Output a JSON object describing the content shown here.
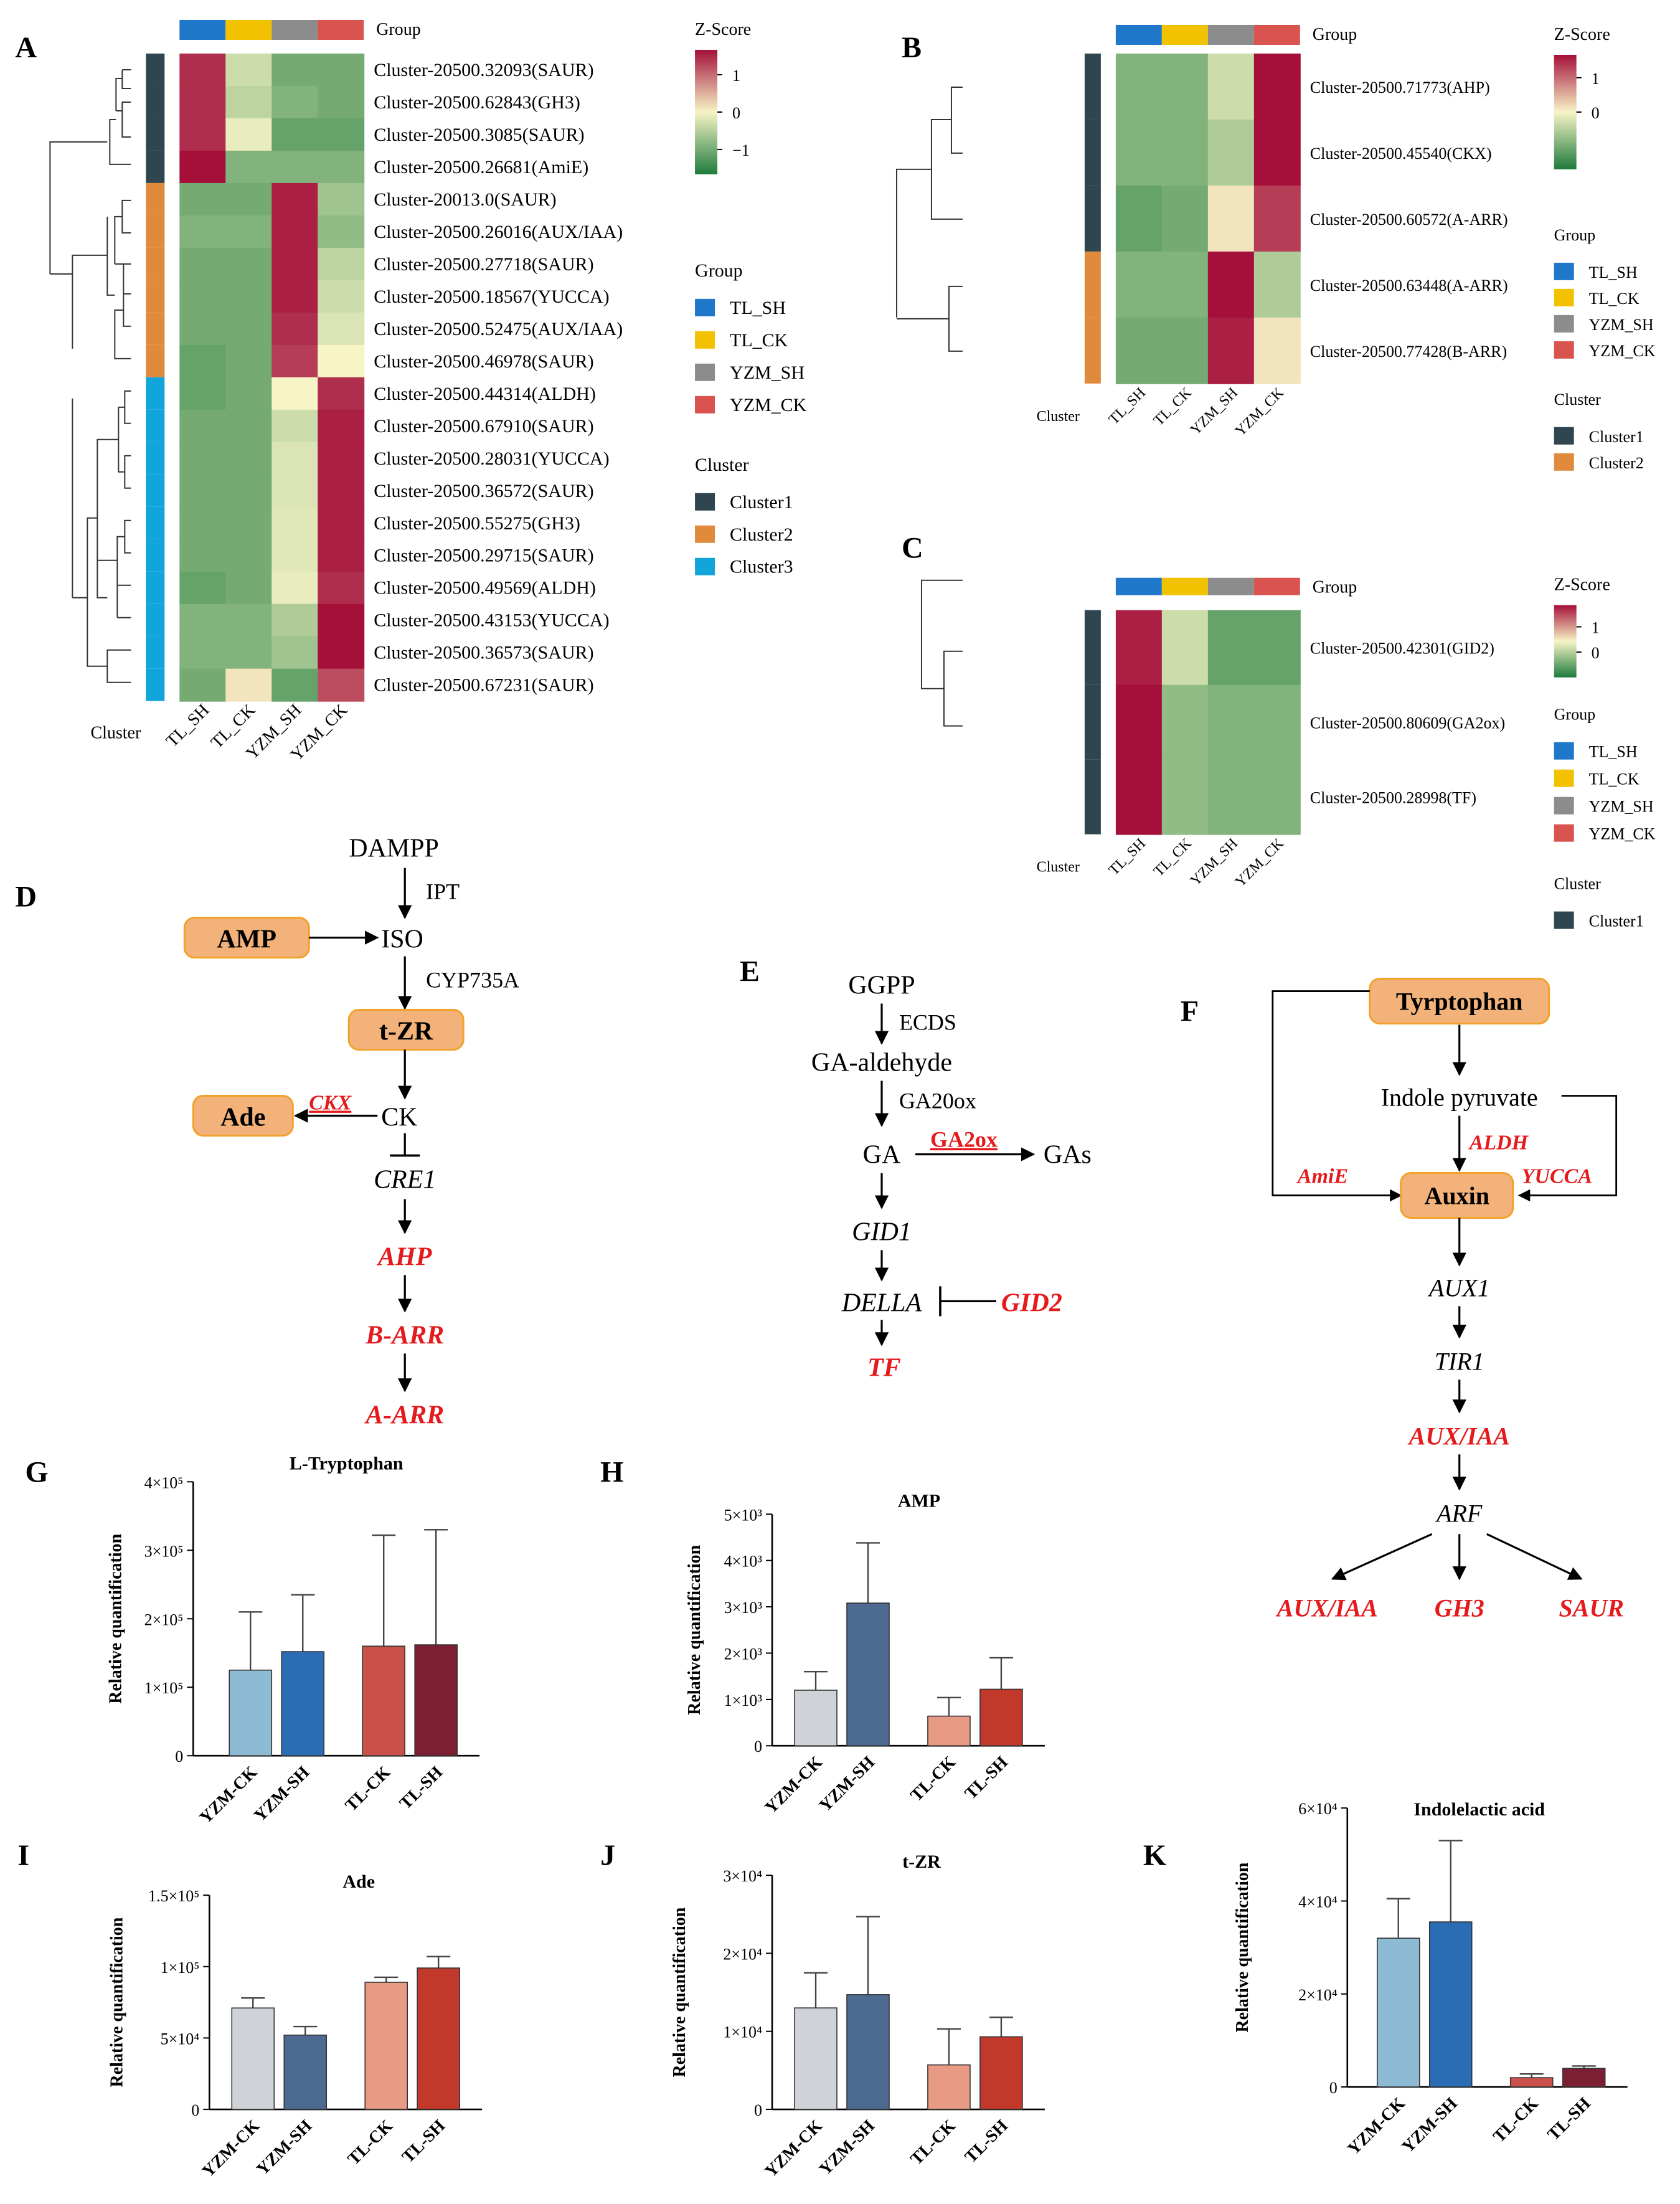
{
  "colors": {
    "TL_SH": "#1f77c9",
    "TL_CK": "#f2c200",
    "YZM_SH": "#8c8c8c",
    "YZM_CK": "#d9534f",
    "Cluster1": "#2f4550",
    "Cluster2": "#e08a3c",
    "Cluster3": "#12a5dc",
    "zhigh": "#a5103a",
    "zmid": "#f7f4c6",
    "zlow": "#1e7b3c",
    "box": "#f2b27a",
    "boxBorder": "#f2a22a",
    "highlight": "#e41a1c"
  },
  "chart_data": [
    {
      "panel": "A",
      "type": "heatmap",
      "columns": [
        "TL_SH",
        "TL_CK",
        "YZM_SH",
        "YZM_CK"
      ],
      "group_title": "Group",
      "cluster_title": "Cluster",
      "zscore_title": "Z-Score",
      "zscore_ticks": [
        "1",
        "0",
        "−1"
      ],
      "groups_legend": [
        "TL_SH",
        "TL_CK",
        "YZM_SH",
        "YZM_CK"
      ],
      "clusters_legend": [
        "Cluster1",
        "Cluster2",
        "Cluster3"
      ],
      "rows": [
        {
          "label": "Cluster-20500.32093(SAUR)",
          "cluster": 1,
          "z": [
            1.3,
            -0.3,
            -0.9,
            -0.9
          ]
        },
        {
          "label": "Cluster-20500.62843(GH3)",
          "cluster": 1,
          "z": [
            1.3,
            -0.4,
            -0.8,
            -0.9
          ]
        },
        {
          "label": "Cluster-20500.3085(SAUR)",
          "cluster": 1,
          "z": [
            1.3,
            -0.1,
            -1.0,
            -1.0
          ]
        },
        {
          "label": "Cluster-20500.26681(AmiE)",
          "cluster": 1,
          "z": [
            1.5,
            -0.8,
            -0.8,
            -0.8
          ]
        },
        {
          "label": "Cluster-20013.0(SAUR)",
          "cluster": 2,
          "z": [
            -0.9,
            -0.9,
            1.4,
            -0.6
          ]
        },
        {
          "label": "Cluster-20500.26016(AUX/IAA)",
          "cluster": 2,
          "z": [
            -0.8,
            -0.8,
            1.4,
            -0.7
          ]
        },
        {
          "label": "Cluster-20500.27718(SAUR)",
          "cluster": 2,
          "z": [
            -0.9,
            -0.9,
            1.4,
            -0.4
          ]
        },
        {
          "label": "Cluster-20500.18567(YUCCA)",
          "cluster": 2,
          "z": [
            -0.9,
            -0.9,
            1.4,
            -0.3
          ]
        },
        {
          "label": "Cluster-20500.52475(AUX/IAA)",
          "cluster": 2,
          "z": [
            -0.9,
            -0.9,
            1.3,
            -0.2
          ]
        },
        {
          "label": "Cluster-20500.46978(SAUR)",
          "cluster": 2,
          "z": [
            -1.0,
            -0.9,
            1.2,
            0.0
          ]
        },
        {
          "label": "Cluster-20500.44314(ALDH)",
          "cluster": 3,
          "z": [
            -1.0,
            -0.9,
            0.0,
            1.3
          ]
        },
        {
          "label": "Cluster-20500.67910(SAUR)",
          "cluster": 3,
          "z": [
            -0.9,
            -0.9,
            -0.3,
            1.4
          ]
        },
        {
          "label": "Cluster-20500.28031(YUCCA)",
          "cluster": 3,
          "z": [
            -0.9,
            -0.9,
            -0.2,
            1.4
          ]
        },
        {
          "label": "Cluster-20500.36572(SAUR)",
          "cluster": 3,
          "z": [
            -0.9,
            -0.9,
            -0.2,
            1.4
          ]
        },
        {
          "label": "Cluster-20500.55275(GH3)",
          "cluster": 3,
          "z": [
            -0.9,
            -0.9,
            -0.15,
            1.4
          ]
        },
        {
          "label": "Cluster-20500.29715(SAUR)",
          "cluster": 3,
          "z": [
            -0.9,
            -0.9,
            -0.15,
            1.4
          ]
        },
        {
          "label": "Cluster-20500.49569(ALDH)",
          "cluster": 3,
          "z": [
            -1.0,
            -0.9,
            -0.1,
            1.3
          ]
        },
        {
          "label": "Cluster-20500.43153(YUCCA)",
          "cluster": 3,
          "z": [
            -0.8,
            -0.8,
            -0.5,
            1.5
          ]
        },
        {
          "label": "Cluster-20500.36573(SAUR)",
          "cluster": 3,
          "z": [
            -0.8,
            -0.8,
            -0.6,
            1.5
          ]
        },
        {
          "label": "Cluster-20500.67231(SAUR)",
          "cluster": 3,
          "z": [
            -0.9,
            0.1,
            -1.0,
            1.1
          ]
        }
      ]
    },
    {
      "panel": "B",
      "type": "heatmap",
      "columns": [
        "TL_SH",
        "TL_CK",
        "YZM_SH",
        "YZM_CK"
      ],
      "group_title": "Group",
      "cluster_title": "Cluster",
      "zscore_title": "Z-Score",
      "zscore_ticks": [
        "1",
        "0"
      ],
      "groups_legend": [
        "TL_SH",
        "TL_CK",
        "YZM_SH",
        "YZM_CK"
      ],
      "clusters_legend": [
        "Cluster1",
        "Cluster2"
      ],
      "rows": [
        {
          "label": "Cluster-20500.71773(AHP)",
          "cluster": 1,
          "z": [
            -0.8,
            -0.8,
            -0.3,
            1.5
          ]
        },
        {
          "label": "Cluster-20500.45540(CKX)",
          "cluster": 1,
          "z": [
            -0.8,
            -0.8,
            -0.5,
            1.5
          ]
        },
        {
          "label": "Cluster-20500.60572(A-ARR)",
          "cluster": 1,
          "z": [
            -1.0,
            -0.9,
            0.1,
            1.2
          ]
        },
        {
          "label": "Cluster-20500.63448(A-ARR)",
          "cluster": 2,
          "z": [
            -0.8,
            -0.8,
            1.5,
            -0.5
          ]
        },
        {
          "label": "Cluster-20500.77428(B-ARR)",
          "cluster": 2,
          "z": [
            -0.9,
            -0.9,
            1.4,
            0.1
          ]
        }
      ]
    },
    {
      "panel": "C",
      "type": "heatmap",
      "columns": [
        "TL_SH",
        "TL_CK",
        "YZM_SH",
        "YZM_CK"
      ],
      "group_title": "Group",
      "cluster_title": "Cluster",
      "zscore_title": "Z-Score",
      "zscore_ticks": [
        "1",
        "0"
      ],
      "groups_legend": [
        "TL_SH",
        "TL_CK",
        "YZM_SH",
        "YZM_CK"
      ],
      "clusters_legend": [
        "Cluster1"
      ],
      "rows": [
        {
          "label": "Cluster-20500.42301(GID2)",
          "cluster": 1,
          "z": [
            1.4,
            -0.3,
            -1.0,
            -1.0
          ]
        },
        {
          "label": "Cluster-20500.80609(GA2ox)",
          "cluster": 1,
          "z": [
            1.5,
            -0.7,
            -0.8,
            -0.8
          ]
        },
        {
          "label": "Cluster-20500.28998(TF)",
          "cluster": 1,
          "z": [
            1.5,
            -0.7,
            -0.8,
            -0.8
          ]
        }
      ]
    },
    {
      "panel": "G",
      "type": "bar",
      "title": "L-Tryptophan",
      "ylabel": "Relative quantification",
      "categories": [
        "YZM-CK",
        "YZM-SH",
        "TL-CK",
        "TL-SH"
      ],
      "values": [
        125000,
        152000,
        160000,
        162000
      ],
      "errors": [
        85000,
        83000,
        162000,
        168000
      ],
      "ylim": [
        0,
        400000
      ],
      "yticks": [
        "0",
        "1×10⁵",
        "2×10⁵",
        "3×10⁵",
        "4×10⁵"
      ],
      "bar_colors": [
        "#8dbbd4",
        "#2a6db5",
        "#c9514a",
        "#7d1f33"
      ]
    },
    {
      "panel": "H",
      "type": "bar",
      "title": "AMP",
      "ylabel": "Relative quantification",
      "categories": [
        "YZM-CK",
        "YZM-SH",
        "TL-CK",
        "TL-SH"
      ],
      "values": [
        1200,
        3080,
        640,
        1220
      ],
      "errors": [
        400,
        1300,
        400,
        680
      ],
      "ylim": [
        0,
        5000
      ],
      "yticks": [
        "0",
        "1×10³",
        "2×10³",
        "3×10³",
        "4×10³",
        "5×10³"
      ],
      "bar_colors": [
        "#cfd3d8",
        "#4d6a91",
        "#e89a85",
        "#c2392b"
      ]
    },
    {
      "panel": "I",
      "type": "bar",
      "title": "Ade",
      "ylabel": "Relative quantification",
      "categories": [
        "YZM-CK",
        "YZM-SH",
        "TL-CK",
        "TL-SH"
      ],
      "values": [
        71000,
        52000,
        89000,
        99000
      ],
      "errors": [
        7000,
        6000,
        3500,
        8000
      ],
      "ylim": [
        0,
        150000
      ],
      "yticks": [
        "0",
        "5×10⁴",
        "1×10⁵",
        "1.5×10⁵"
      ],
      "bar_colors": [
        "#cfd3d8",
        "#4d6a91",
        "#e89a85",
        "#c2392b"
      ]
    },
    {
      "panel": "J",
      "type": "bar",
      "title": "t-ZR",
      "ylabel": "Relative quantification",
      "categories": [
        "YZM-CK",
        "YZM-SH",
        "TL-CK",
        "TL-SH"
      ],
      "values": [
        13000,
        14700,
        5700,
        9300
      ],
      "errors": [
        4500,
        10000,
        4600,
        2500
      ],
      "ylim": [
        0,
        30000
      ],
      "yticks": [
        "0",
        "1×10⁴",
        "2×10⁴",
        "3×10⁴"
      ],
      "bar_colors": [
        "#cfd3d8",
        "#4d6a91",
        "#e89a85",
        "#c2392b"
      ]
    },
    {
      "panel": "K",
      "type": "bar",
      "title": "Indolelactic acid",
      "ylabel": "Relative quantification",
      "categories": [
        "YZM-CK",
        "YZM-SH",
        "TL-CK",
        "TL-SH"
      ],
      "values": [
        32000,
        35500,
        2000,
        4000
      ],
      "errors": [
        8500,
        17500,
        800,
        500
      ],
      "ylim": [
        0,
        60000
      ],
      "yticks": [
        "0",
        "2×10⁴",
        "4×10⁴",
        "6×10⁴"
      ],
      "bar_colors": [
        "#8dbbd4",
        "#2a6db5",
        "#c9514a",
        "#7d1f33"
      ]
    }
  ],
  "pathways": {
    "D": {
      "DAMPP": "DAMPP",
      "IPT": "IPT",
      "AMP": "AMP",
      "ISO": "ISO",
      "CYP735A": "CYP735A",
      "tZR": "t-ZR",
      "Ade": "Ade",
      "CKX": "CKX",
      "CK": "CK",
      "CRE1": "CRE1",
      "AHP": "AHP",
      "BARR": "B-ARR",
      "AARR": "A-ARR"
    },
    "E": {
      "GGPP": "GGPP",
      "ECDS": "ECDS",
      "GAald": "GA-aldehyde",
      "GA20ox": "GA20ox",
      "GA": "GA",
      "GA2ox": "GA2ox",
      "GAs": "GAs",
      "GID1": "GID1",
      "DELLA": "DELLA",
      "GID2": "GID2",
      "TF": "TF"
    },
    "F": {
      "Trp": "Tyrptophan",
      "IPA": "Indole pyruvate",
      "ALDH": "ALDH",
      "AmiE": "AmiE",
      "YUCCA": "YUCCA",
      "Auxin": "Auxin",
      "AUX1": "AUX1",
      "TIR1": "TIR1",
      "AUXIAA": "AUX/IAA",
      "ARF": "ARF",
      "AUXIAA2": "AUX/IAA",
      "GH3": "GH3",
      "SAUR": "SAUR"
    }
  },
  "labels": {
    "A": "A",
    "B": "B",
    "C": "C",
    "D": "D",
    "E": "E",
    "F": "F",
    "G": "G",
    "H": "H",
    "I": "I",
    "J": "J",
    "K": "K"
  }
}
